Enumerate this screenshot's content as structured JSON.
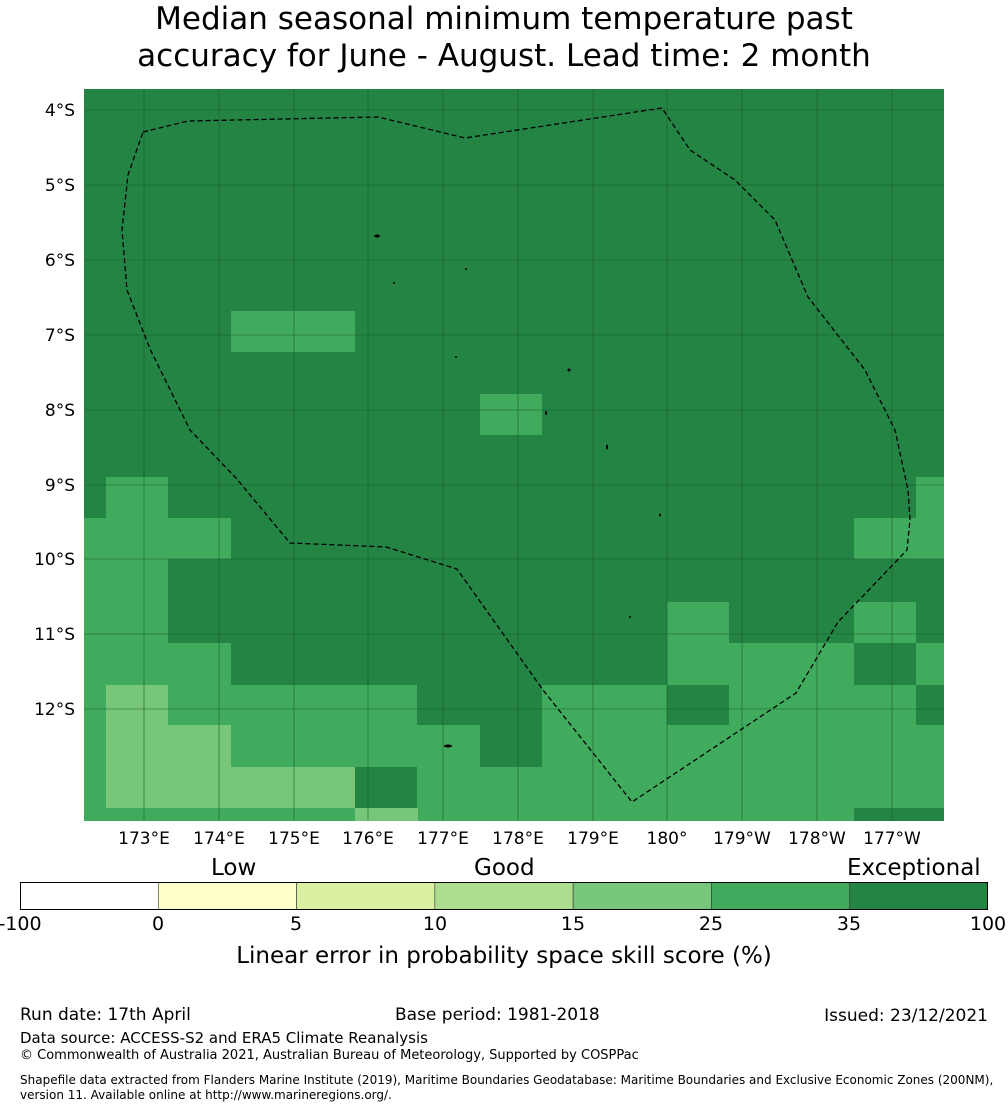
{
  "title": {
    "line1": "Median seasonal minimum temperature past",
    "line2": "accuracy for June - August. Lead time: 2 month"
  },
  "map": {
    "lat_labels": [
      "4°S",
      "5°S",
      "6°S",
      "7°S",
      "8°S",
      "9°S",
      "10°S",
      "11°S",
      "12°S"
    ],
    "lon_labels": [
      "173°E",
      "174°E",
      "175°E",
      "176°E",
      "177°E",
      "178°E",
      "179°E",
      "180°",
      "179°W",
      "178°W",
      "177°W"
    ],
    "lon_range": [
      172.2,
      183.7
    ],
    "lat_range": [
      -13.4,
      -3.73
    ],
    "boundary_style": "dashed",
    "colors": {
      "c15_25": "#78c679",
      "c25_35": "#41ab5d",
      "c35_100": "#238443",
      "gridline": "#1a5c30"
    }
  },
  "legend": {
    "categories": [
      "Low",
      "Good",
      "Exceptional"
    ],
    "ticks": [
      "-100",
      "0",
      "5",
      "10",
      "15",
      "25",
      "35",
      "100"
    ],
    "colors": [
      "#ffffff",
      "#ffffcc",
      "#d9f0a3",
      "#addd8e",
      "#78c679",
      "#41ab5d",
      "#238443"
    ],
    "label": "Linear error in probability space skill score (%)"
  },
  "footer": {
    "run_date": "Run date: 17th April",
    "base_period": "Base period: 1981-2018",
    "issued": "Issued: 23/12/2021",
    "data_source": "Data source: ACCESS-S2 and ERA5 Climate Reanalysis",
    "copyright": "© Commonwealth of Australia 2021, Australian Bureau of Meteorology, Supported by COSPPac",
    "shapefile_line1": "Shapefile data extracted from Flanders Marine Institute (2019), Maritime Boundaries Geodatabase: Maritime Boundaries and Exclusive Economic Zones (200NM),",
    "shapefile_line2": "version 11. Available online at http://www.marineregions.org/."
  }
}
